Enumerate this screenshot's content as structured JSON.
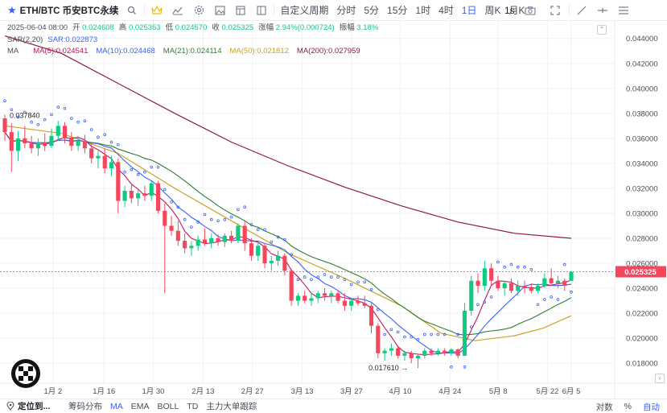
{
  "toolbar": {
    "symbol": "ETH/BTC 币安BTC永续",
    "custom_period": "自定义周期",
    "intervals": [
      "分时",
      "5分",
      "15分",
      "1时",
      "4时",
      "1日",
      "周K",
      "月K"
    ],
    "active_interval": "1日",
    "seconds": "1s"
  },
  "legend": {
    "date": "2025-06-04 08:00",
    "open_label": "开",
    "open": "0.024608",
    "high_label": "高",
    "high": "0.025353",
    "low_label": "低",
    "low": "0.024570",
    "close_label": "收",
    "close": "0.025325",
    "change_label": "涨幅",
    "change": "2.94%(0.000724)",
    "amp_label": "振幅",
    "amp": "3.18%",
    "sar_name": "SAR(2,20)",
    "sar_value": "SAR:0.022873",
    "ma_name": "MA",
    "ma_items": [
      {
        "label": "MA(5):0.024541",
        "color": "#c2185b"
      },
      {
        "label": "MA(10):0.024468",
        "color": "#3861fb"
      },
      {
        "label": "MA(21):0.024114",
        "color": "#2e7d32"
      },
      {
        "label": "MA(50):0.021812",
        "color": "#c9a227"
      },
      {
        "label": "MA(200):0.027959",
        "color": "#8e1b3a"
      }
    ]
  },
  "chart_data": {
    "type": "candlestick",
    "y_ticks": [
      "0.044000",
      "0.042000",
      "0.040000",
      "0.038000",
      "0.036000",
      "0.034000",
      "0.032000",
      "0.030000",
      "0.028000",
      "0.026000",
      "0.024000",
      "0.022000",
      "0.020000",
      "0.018000"
    ],
    "ylim": [
      0.0164,
      0.0454
    ],
    "x_ticks": [
      "1月 2",
      "1月 16",
      "1月 30",
      "2月 13",
      "2月 27",
      "3月 13",
      "3月 27",
      "4月 10",
      "4月 24",
      "5月 8",
      "5月 22",
      "6月 5"
    ],
    "last_price": "0.025325",
    "high_annotation": "0.037840",
    "low_annotation": "0.017610 →",
    "ohlc": [
      [
        0.0376,
        0.0379,
        0.0358,
        0.0365
      ],
      [
        0.0365,
        0.0372,
        0.0333,
        0.035
      ],
      [
        0.035,
        0.0366,
        0.0342,
        0.036
      ],
      [
        0.036,
        0.037,
        0.0352,
        0.0356
      ],
      [
        0.0356,
        0.0362,
        0.0348,
        0.0352
      ],
      [
        0.0352,
        0.036,
        0.0346,
        0.0357
      ],
      [
        0.0357,
        0.0364,
        0.035,
        0.0354
      ],
      [
        0.0354,
        0.0368,
        0.0352,
        0.0362
      ],
      [
        0.0362,
        0.0374,
        0.0358,
        0.037
      ],
      [
        0.037,
        0.0373,
        0.0356,
        0.036
      ],
      [
        0.036,
        0.0365,
        0.035,
        0.0354
      ],
      [
        0.0354,
        0.0362,
        0.035,
        0.0358
      ],
      [
        0.0358,
        0.0363,
        0.0348,
        0.0352
      ],
      [
        0.0352,
        0.0356,
        0.034,
        0.0344
      ],
      [
        0.0344,
        0.035,
        0.0336,
        0.0346
      ],
      [
        0.0346,
        0.0352,
        0.0332,
        0.0336
      ],
      [
        0.0336,
        0.0346,
        0.033,
        0.0341
      ],
      [
        0.0341,
        0.0344,
        0.03,
        0.031
      ],
      [
        0.031,
        0.0322,
        0.0305,
        0.0318
      ],
      [
        0.0318,
        0.0324,
        0.0308,
        0.0312
      ],
      [
        0.0312,
        0.032,
        0.0306,
        0.0316
      ],
      [
        0.0316,
        0.0322,
        0.031,
        0.0314
      ],
      [
        0.0314,
        0.0326,
        0.031,
        0.0324
      ],
      [
        0.0324,
        0.0326,
        0.03,
        0.0302
      ],
      [
        0.0302,
        0.0308,
        0.0236,
        0.029
      ],
      [
        0.029,
        0.0298,
        0.0282,
        0.0286
      ],
      [
        0.0286,
        0.0294,
        0.0274,
        0.0278
      ],
      [
        0.0278,
        0.0284,
        0.0268,
        0.0272
      ],
      [
        0.0272,
        0.0278,
        0.0266,
        0.0274
      ],
      [
        0.0274,
        0.0282,
        0.027,
        0.0279
      ],
      [
        0.0279,
        0.0288,
        0.0274,
        0.0276
      ],
      [
        0.0276,
        0.0284,
        0.0272,
        0.028
      ],
      [
        0.028,
        0.0283,
        0.0274,
        0.0277
      ],
      [
        0.0277,
        0.0284,
        0.0273,
        0.0282
      ],
      [
        0.0282,
        0.0286,
        0.0276,
        0.0278
      ],
      [
        0.0278,
        0.0292,
        0.0276,
        0.029
      ],
      [
        0.029,
        0.0294,
        0.027,
        0.0276
      ],
      [
        0.0276,
        0.028,
        0.0262,
        0.0266
      ],
      [
        0.0266,
        0.0276,
        0.0262,
        0.0274
      ],
      [
        0.0274,
        0.0276,
        0.0256,
        0.026
      ],
      [
        0.026,
        0.0266,
        0.0254,
        0.0262
      ],
      [
        0.0262,
        0.027,
        0.0258,
        0.0266
      ],
      [
        0.0266,
        0.0268,
        0.025,
        0.0254
      ],
      [
        0.0254,
        0.0256,
        0.0226,
        0.023
      ],
      [
        0.023,
        0.0236,
        0.0226,
        0.0234
      ],
      [
        0.0234,
        0.0238,
        0.0228,
        0.023
      ],
      [
        0.023,
        0.0236,
        0.0226,
        0.0232
      ],
      [
        0.0232,
        0.0238,
        0.0228,
        0.0236
      ],
      [
        0.0236,
        0.024,
        0.023,
        0.0234
      ],
      [
        0.0234,
        0.0238,
        0.0228,
        0.0236
      ],
      [
        0.0236,
        0.0238,
        0.0228,
        0.023
      ],
      [
        0.023,
        0.0236,
        0.0222,
        0.0226
      ],
      [
        0.0226,
        0.0232,
        0.0222,
        0.023
      ],
      [
        0.023,
        0.0234,
        0.0226,
        0.0228
      ],
      [
        0.0228,
        0.0234,
        0.0224,
        0.0226
      ],
      [
        0.0226,
        0.0228,
        0.0204,
        0.021
      ],
      [
        0.021,
        0.0212,
        0.0184,
        0.0188
      ],
      [
        0.0188,
        0.0192,
        0.0182,
        0.019
      ],
      [
        0.019,
        0.0196,
        0.0186,
        0.0192
      ],
      [
        0.0192,
        0.0194,
        0.0184,
        0.0186
      ],
      [
        0.0186,
        0.019,
        0.0182,
        0.0188
      ],
      [
        0.0188,
        0.019,
        0.018,
        0.0184
      ],
      [
        0.0184,
        0.0188,
        0.0176,
        0.0186
      ],
      [
        0.0186,
        0.0192,
        0.0184,
        0.019
      ],
      [
        0.019,
        0.0192,
        0.0186,
        0.0188
      ],
      [
        0.0188,
        0.0192,
        0.0186,
        0.019
      ],
      [
        0.019,
        0.0192,
        0.0186,
        0.0188
      ],
      [
        0.0188,
        0.0192,
        0.0186,
        0.0191
      ],
      [
        0.0191,
        0.0192,
        0.0184,
        0.0186
      ],
      [
        0.0186,
        0.0228,
        0.0186,
        0.0222
      ],
      [
        0.0222,
        0.025,
        0.0218,
        0.0246
      ],
      [
        0.0246,
        0.0252,
        0.0236,
        0.0242
      ],
      [
        0.0242,
        0.0262,
        0.0238,
        0.0256
      ],
      [
        0.0256,
        0.026,
        0.0242,
        0.0246
      ],
      [
        0.0246,
        0.025,
        0.0238,
        0.024
      ],
      [
        0.024,
        0.0246,
        0.0234,
        0.0244
      ],
      [
        0.0244,
        0.0248,
        0.0236,
        0.0238
      ],
      [
        0.0238,
        0.0246,
        0.0234,
        0.0242
      ],
      [
        0.0242,
        0.0246,
        0.0236,
        0.024
      ],
      [
        0.024,
        0.0244,
        0.0236,
        0.0238
      ],
      [
        0.0238,
        0.0244,
        0.0236,
        0.0242
      ],
      [
        0.0242,
        0.0252,
        0.024,
        0.0248
      ],
      [
        0.0248,
        0.0256,
        0.0242,
        0.0244
      ],
      [
        0.0244,
        0.025,
        0.024,
        0.0246
      ],
      [
        0.0246,
        0.0248,
        0.0238,
        0.0242
      ],
      [
        0.0246,
        0.0254,
        0.0246,
        0.0253
      ]
    ],
    "ma200": [
      [
        0,
        0.0442
      ],
      [
        0.1,
        0.0428
      ],
      [
        0.2,
        0.0404
      ],
      [
        0.3,
        0.038
      ],
      [
        0.4,
        0.0357
      ],
      [
        0.5,
        0.0338
      ],
      [
        0.6,
        0.0321
      ],
      [
        0.7,
        0.0306
      ],
      [
        0.8,
        0.0293
      ],
      [
        0.9,
        0.0284
      ],
      [
        1,
        0.028
      ]
    ],
    "ma50": [
      [
        0,
        0.037
      ],
      [
        0.1,
        0.0364
      ],
      [
        0.2,
        0.0348
      ],
      [
        0.3,
        0.032
      ],
      [
        0.4,
        0.0294
      ],
      [
        0.5,
        0.0268
      ],
      [
        0.6,
        0.0248
      ],
      [
        0.7,
        0.0226
      ],
      [
        0.77,
        0.0204
      ],
      [
        0.83,
        0.0198
      ],
      [
        0.9,
        0.0202
      ],
      [
        0.95,
        0.0208
      ],
      [
        1,
        0.0218
      ]
    ]
  },
  "bottombar": {
    "locate": "定位到...",
    "items": [
      "筹码分布",
      "MA",
      "EMA",
      "BOLL",
      "TD",
      "主力大单跟踪"
    ],
    "active_item": "MA",
    "log_label": "对数",
    "percent_label": "%",
    "auto_label": "自动"
  },
  "colors": {
    "up": "#0ecb81",
    "down": "#f6465d",
    "sar": "#3861fb",
    "price_label": "#f6465d",
    "accent": "#3861fb",
    "grid": "#f0f1f3"
  }
}
